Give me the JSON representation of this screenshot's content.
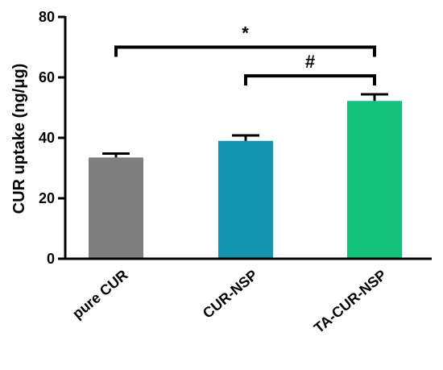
{
  "chart_data": {
    "type": "bar",
    "categories": [
      "pure CUR",
      "CUR-NSP",
      "TA-CUR-NSP"
    ],
    "values": [
      33.5,
      39.0,
      52.2
    ],
    "errors": [
      1.3,
      1.8,
      2.2
    ],
    "colors": [
      "#7f7f7f",
      "#1594b0",
      "#13c17a"
    ],
    "ylabel": "CUR uptake (ng/μg)",
    "ylim": [
      0,
      80
    ],
    "yticks": [
      0,
      20,
      40,
      60,
      80
    ],
    "grid": false,
    "annotations": [
      {
        "label": "*",
        "from": "pure CUR",
        "to": "TA-CUR-NSP",
        "y": 70.0
      },
      {
        "label": "#",
        "from": "CUR-NSP",
        "to": "TA-CUR-NSP",
        "y": 60.5
      }
    ]
  }
}
